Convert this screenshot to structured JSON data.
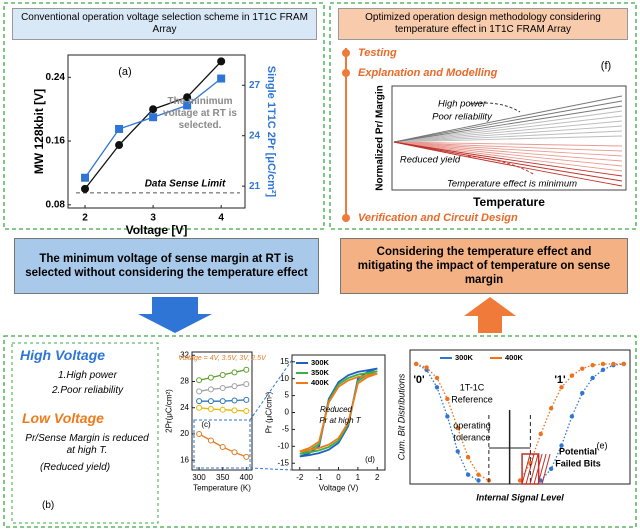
{
  "left_header": "Conventional operation voltage selection scheme in 1T1C FRAM Array",
  "right_header": "Optimized operation design methodology considering temperature effect in 1T1C FRAM Array",
  "left_summary": "The minimum voltage of sense margin at RT is selected without considering the temperature effect",
  "right_summary": "Considering the temperature effect and mitigating the impact of temperature on sense margin",
  "steps": [
    "Testing",
    "Explanation and Modelling",
    "Verification and Circuit Design"
  ],
  "panel_f": {
    "label": "(f)",
    "y_label": "Normalized Pr/ Margin",
    "x_label": "Temperature",
    "notes": [
      "High power",
      "Poor reliability",
      "Reduced yield",
      "Temperature effect is minimum"
    ]
  },
  "panel_b": {
    "label": "(b)",
    "high_title": "High Voltage",
    "high_items": [
      "1.High power",
      "2.Poor reliability"
    ],
    "low_title": "Low Voltage",
    "low_text": "Pr/Sense Margin is reduced at high T.",
    "low_note": "(Reduced yield)"
  },
  "chart_data": [
    {
      "type": "line",
      "x_label": "Voltage [V]",
      "y_label": "MW 128kbit [V]",
      "y2_label": "Single 1T1C 2Pr [μC/cm²]",
      "x": [
        2,
        2.5,
        3,
        3.5,
        4
      ],
      "series": [
        {
          "color": "#111111",
          "marker": "circle",
          "values": [
            0.1,
            0.155,
            0.2,
            0.215,
            0.26
          ]
        },
        {
          "color": "#2e75d6",
          "marker": "square",
          "axis": "y2",
          "values": [
            21.5,
            24.4,
            25.1,
            25.8,
            27.4
          ]
        }
      ],
      "xlim": [
        1.75,
        4.35
      ],
      "xticks": [
        2,
        3,
        4
      ],
      "ylim": [
        0.076,
        0.268
      ],
      "yticks": [
        0.08,
        0.16,
        0.24
      ],
      "y2lim": [
        19.7,
        28.8
      ],
      "y2ticks": [
        21,
        24,
        27
      ],
      "sense_limit": 0.095,
      "annotations": [
        "(a)",
        "Data Sense Limit",
        "The minimum voltage at RT is selected."
      ]
    },
    {
      "type": "line",
      "x_label": "Temperature (K)",
      "y_label": "2Pr(μC/cm²)",
      "x": [
        300,
        325,
        350,
        375,
        400
      ],
      "series": [
        {
          "color": "#5aa02c",
          "marker": "open-circle",
          "values": [
            28.2,
            28.6,
            29,
            29.4,
            29.8
          ]
        },
        {
          "color": "#a0a0a0",
          "marker": "open-circle",
          "values": [
            26.5,
            26.8,
            27,
            27.3,
            27.6
          ]
        },
        {
          "color": "#2e75b6",
          "marker": "open-circle",
          "values": [
            25,
            25,
            25,
            25.1,
            25.2
          ]
        },
        {
          "color": "#e6b800",
          "marker": "open-circle",
          "values": [
            24,
            23.8,
            23.7,
            23.6,
            23.5
          ]
        },
        {
          "color": "#e07b22",
          "marker": "open-circle",
          "values": [
            20,
            19,
            18,
            17.2,
            16.5
          ]
        }
      ],
      "xlim": [
        285,
        412
      ],
      "xticks": [
        300,
        350,
        400
      ],
      "ylim": [
        14.5,
        32.5
      ],
      "yticks": [
        16,
        20,
        24,
        28,
        32
      ],
      "annotations": [
        "(c)",
        "Voltage = 4V, 3.5V, 3V, 2.5V"
      ]
    },
    {
      "type": "line",
      "x_label": "Voltage (V)",
      "y_label": "Pr (μC/cm²)",
      "legend": "upper left",
      "x": [
        -2,
        -1.5,
        -1,
        -0.5,
        0,
        0.5,
        1,
        1.5,
        2,
        1.5,
        1,
        0.5,
        0,
        -0.5,
        -1,
        -1.5,
        -2
      ],
      "series": [
        {
          "name": "300K",
          "color": "#1f5fbf",
          "marker": "none",
          "values": [
            -13,
            -12.6,
            -12,
            -11,
            -9,
            -4,
            10,
            12,
            13,
            12.5,
            12,
            11,
            9,
            4,
            -10,
            -12,
            -13
          ]
        },
        {
          "name": "350K",
          "color": "#3cb043",
          "marker": "none",
          "values": [
            -12.2,
            -11.8,
            -11.2,
            -10.2,
            -8.3,
            -3.5,
            9.3,
            11.2,
            12.2,
            11.7,
            11.2,
            10.2,
            8.3,
            3.5,
            -9.3,
            -11.2,
            -12.2
          ]
        },
        {
          "name": "400K",
          "color": "#f07a1a",
          "marker": "none",
          "values": [
            -11.5,
            -11.1,
            -10.5,
            -9.5,
            -7.6,
            -3,
            8.6,
            10.5,
            11.5,
            11,
            10.5,
            9.5,
            7.6,
            3,
            -8.6,
            -10.5,
            -11.5
          ]
        }
      ],
      "xlim": [
        -2.4,
        2.4
      ],
      "xticks": [
        -2,
        -1,
        0,
        1,
        2
      ],
      "ylim": [
        -17,
        17
      ],
      "yticks": [
        -15,
        -10,
        -5,
        0,
        5,
        10,
        15
      ],
      "annotations": [
        "(d)",
        "Reduced",
        "Pr at high T"
      ]
    },
    {
      "type": "line",
      "x_label": "Internal Signal Level",
      "y_label": "Cum. Bit Distributions",
      "legend": "upper center",
      "x": [
        0,
        0.5,
        1,
        1.5,
        2,
        2.5,
        3,
        3.5,
        4,
        4.5,
        5,
        5.5,
        6,
        6.5,
        7,
        7.5,
        8,
        8.5,
        9,
        9.5,
        10
      ],
      "series": [
        {
          "name": "300K",
          "color": "#2e75d6",
          "marker": "dot",
          "values": [
            1,
            0.95,
            0.8,
            0.55,
            0.25,
            0.05,
            0,
            null,
            null,
            null,
            null,
            null,
            0,
            0.1,
            0.3,
            0.55,
            0.75,
            0.88,
            0.95,
            0.99,
            1
          ]
        },
        {
          "name": "400K",
          "color": "#f0701c",
          "marker": "dot",
          "values": [
            1,
            0.97,
            0.88,
            0.7,
            0.45,
            0.2,
            0.05,
            0,
            null,
            null,
            0,
            0.15,
            0.4,
            0.62,
            0.8,
            0.9,
            0.96,
            0.99,
            1,
            1,
            1
          ]
        }
      ],
      "xlim": [
        -0.3,
        10.3
      ],
      "ylim": [
        -0.03,
        1.12
      ],
      "annotations": [
        "(e)",
        "'0'",
        "'1'",
        "1T-1C",
        "Reference",
        "operating",
        "tolerance",
        "Potential",
        "Failed Bits"
      ]
    }
  ]
}
